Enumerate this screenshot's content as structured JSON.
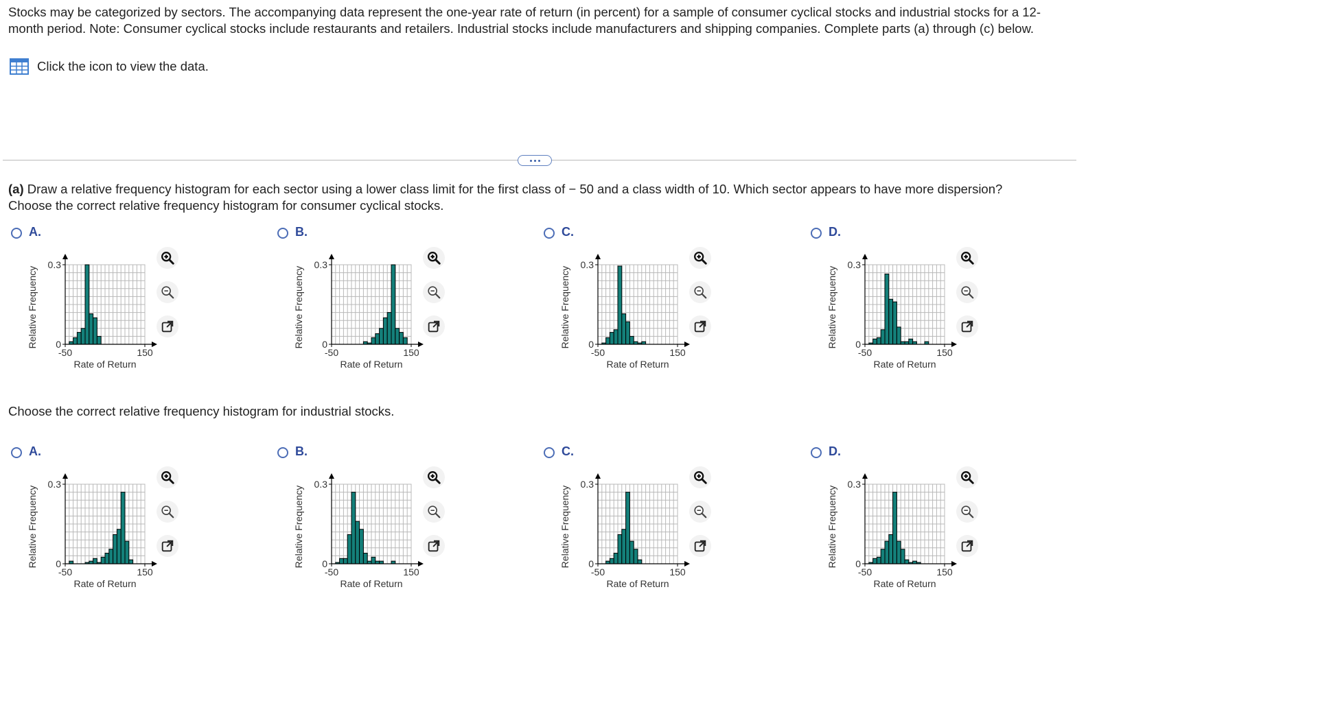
{
  "intro": "Stocks may be categorized by sectors. The accompanying data represent the one-year rate of return (in percent) for a sample of consumer cyclical stocks and industrial stocks for a 12-month period. Note: Consumer cyclical stocks include restaurants and retailers. Industrial stocks include manufacturers and shipping companies. Complete parts (a) through (c) below.",
  "data_link": "Click the icon to view the data.",
  "part_a_label": "(a)",
  "part_a_text": " Draw a relative frequency histogram for each sector using a lower class limit for the first class of − 50 and a class width of 10. Which sector appears to have more dispersion?",
  "q1": "Choose the correct relative frequency histogram for consumer cyclical stocks.",
  "q2": "Choose the correct relative frequency histogram for industrial stocks.",
  "colors": {
    "bar": "#14807a",
    "grid": "#b8b8b8",
    "radio": "#4c6db6",
    "letter": "#2f4a9a"
  },
  "icons": {
    "data": "table-grid-icon",
    "zoom_in": "zoom-in-icon",
    "zoom_out": "zoom-out-icon",
    "popout": "popout-icon"
  },
  "groups": [
    {
      "options": [
        {
          "letter": "A.",
          "chart": {
            "ylabel": "Relative Frequency",
            "xlabel": "Rate of Return",
            "ytick_top": "0.3",
            "ytick_bottom": "0",
            "xtick_left": "-50",
            "xtick_right": "150"
          }
        },
        {
          "letter": "B.",
          "chart": {
            "ylabel": "Relative Frequency",
            "xlabel": "Rate of Return",
            "ytick_top": "0.3",
            "ytick_bottom": "0",
            "xtick_left": "-50",
            "xtick_right": "150"
          }
        },
        {
          "letter": "C.",
          "chart": {
            "ylabel": "Relative Frequency",
            "xlabel": "Rate of Return",
            "ytick_top": "0.3",
            "ytick_bottom": "0",
            "xtick_left": "-50",
            "xtick_right": "150"
          }
        },
        {
          "letter": "D.",
          "chart": {
            "ylabel": "Relative Frequency",
            "xlabel": "Rate of Return",
            "ytick_top": "0.3",
            "ytick_bottom": "0",
            "xtick_left": "-50",
            "xtick_right": "150"
          }
        }
      ]
    },
    {
      "options": [
        {
          "letter": "A.",
          "chart": {
            "ylabel": "Relative Frequency",
            "xlabel": "Rate of Return",
            "ytick_top": "0.3",
            "ytick_bottom": "0",
            "xtick_left": "-50",
            "xtick_right": "150"
          }
        },
        {
          "letter": "B.",
          "chart": {
            "ylabel": "Relative Frequency",
            "xlabel": "Rate of Return",
            "ytick_top": "0.3",
            "ytick_bottom": "0",
            "xtick_left": "-50",
            "xtick_right": "150"
          }
        },
        {
          "letter": "C.",
          "chart": {
            "ylabel": "Relative Frequency",
            "xlabel": "Rate of Return",
            "ytick_top": "0.3",
            "ytick_bottom": "0",
            "xtick_left": "-50",
            "xtick_right": "150"
          }
        },
        {
          "letter": "D.",
          "chart": {
            "ylabel": "Relative Frequency",
            "xlabel": "Rate of Return",
            "ytick_top": "0.3",
            "ytick_bottom": "0",
            "xtick_left": "-50",
            "xtick_right": "150"
          }
        }
      ]
    }
  ],
  "chart_data": [
    {
      "type": "bar",
      "xlim": [
        -50,
        150
      ],
      "class_width": 10,
      "ylim": [
        0,
        0.3
      ],
      "bins": [
        -50,
        -40,
        -30,
        -20,
        -10,
        0,
        10,
        20,
        30,
        40,
        50,
        60,
        70,
        80,
        90,
        100,
        110,
        120,
        130,
        140
      ],
      "values": [
        0,
        0.01,
        0.025,
        0.045,
        0.06,
        0.3,
        0.115,
        0.1,
        0.03,
        0,
        0,
        0,
        0,
        0,
        0,
        0,
        0,
        0,
        0,
        0
      ]
    },
    {
      "type": "bar",
      "xlim": [
        -50,
        150
      ],
      "class_width": 10,
      "ylim": [
        0,
        0.3
      ],
      "bins": [
        -50,
        -40,
        -30,
        -20,
        -10,
        0,
        10,
        20,
        30,
        40,
        50,
        60,
        70,
        80,
        90,
        100,
        110,
        120,
        130,
        140
      ],
      "values": [
        0,
        0,
        0,
        0,
        0,
        0,
        0,
        0,
        0.01,
        0.005,
        0.025,
        0.04,
        0.06,
        0.1,
        0.12,
        0.3,
        0.06,
        0.045,
        0.025,
        0
      ]
    },
    {
      "type": "bar",
      "xlim": [
        -50,
        150
      ],
      "class_width": 10,
      "ylim": [
        0,
        0.3
      ],
      "bins": [
        -50,
        -40,
        -30,
        -20,
        -10,
        0,
        10,
        20,
        30,
        40,
        50,
        60,
        70,
        80,
        90,
        100,
        110,
        120,
        130,
        140
      ],
      "values": [
        0,
        0.005,
        0.025,
        0.045,
        0.055,
        0.295,
        0.115,
        0.085,
        0.03,
        0.01,
        0.005,
        0.01,
        0,
        0,
        0,
        0,
        0,
        0,
        0,
        0
      ]
    },
    {
      "type": "bar",
      "xlim": [
        -50,
        150
      ],
      "class_width": 10,
      "ylim": [
        0,
        0.3
      ],
      "bins": [
        -50,
        -40,
        -30,
        -20,
        -10,
        0,
        10,
        20,
        30,
        40,
        50,
        60,
        70,
        80,
        90,
        100,
        110,
        120,
        130,
        140
      ],
      "values": [
        0,
        0.005,
        0.02,
        0.025,
        0.055,
        0.265,
        0.17,
        0.16,
        0.065,
        0.01,
        0.01,
        0.02,
        0.01,
        0,
        0,
        0.01,
        0,
        0,
        0,
        0
      ]
    },
    {
      "type": "bar",
      "xlim": [
        -50,
        150
      ],
      "class_width": 10,
      "ylim": [
        0,
        0.3
      ],
      "bins": [
        -50,
        -40,
        -30,
        -20,
        -10,
        0,
        10,
        20,
        30,
        40,
        50,
        60,
        70,
        80,
        90,
        100,
        110,
        120,
        130,
        140
      ],
      "values": [
        0,
        0.01,
        0,
        0,
        0,
        0.005,
        0.01,
        0.02,
        0.005,
        0.025,
        0.04,
        0.055,
        0.11,
        0.13,
        0.27,
        0.085,
        0.015,
        0,
        0,
        0
      ]
    },
    {
      "type": "bar",
      "xlim": [
        -50,
        150
      ],
      "class_width": 10,
      "ylim": [
        0,
        0.3
      ],
      "bins": [
        -50,
        -40,
        -30,
        -20,
        -10,
        0,
        10,
        20,
        30,
        40,
        50,
        60,
        70,
        80,
        90,
        100,
        110,
        120,
        130,
        140
      ],
      "values": [
        0,
        0.005,
        0.02,
        0.02,
        0.11,
        0.27,
        0.16,
        0.13,
        0.04,
        0.01,
        0.025,
        0.01,
        0.01,
        0,
        0,
        0.01,
        0,
        0,
        0,
        0
      ]
    },
    {
      "type": "bar",
      "xlim": [
        -50,
        150
      ],
      "class_width": 10,
      "ylim": [
        0,
        0.3
      ],
      "bins": [
        -50,
        -40,
        -30,
        -20,
        -10,
        0,
        10,
        20,
        30,
        40,
        50,
        60,
        70,
        80,
        90,
        100,
        110,
        120,
        130,
        140
      ],
      "values": [
        0,
        0,
        0.01,
        0.02,
        0.04,
        0.11,
        0.13,
        0.27,
        0.085,
        0.055,
        0.015,
        0,
        0,
        0,
        0,
        0,
        0,
        0,
        0,
        0
      ]
    },
    {
      "type": "bar",
      "xlim": [
        -50,
        150
      ],
      "class_width": 10,
      "ylim": [
        0,
        0.3
      ],
      "bins": [
        -50,
        -40,
        -30,
        -20,
        -10,
        0,
        10,
        20,
        30,
        40,
        50,
        60,
        70,
        80,
        90,
        100,
        110,
        120,
        130,
        140
      ],
      "values": [
        0,
        0.005,
        0.02,
        0.025,
        0.055,
        0.085,
        0.11,
        0.27,
        0.085,
        0.055,
        0.015,
        0.005,
        0.01,
        0.005,
        0,
        0,
        0,
        0,
        0,
        0
      ]
    }
  ]
}
